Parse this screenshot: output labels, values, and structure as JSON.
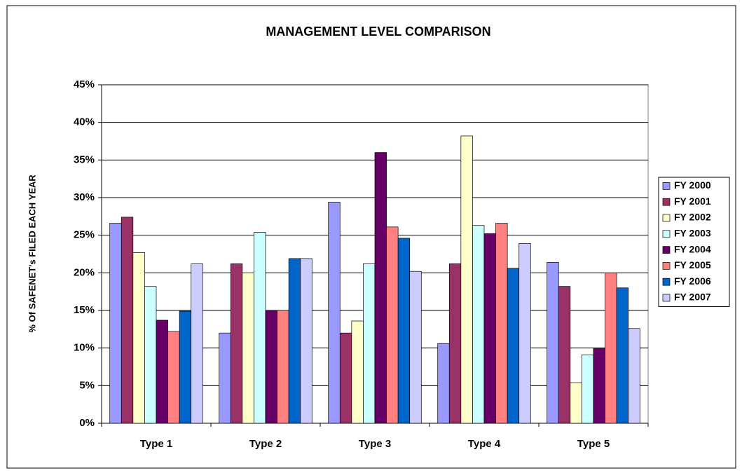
{
  "chart_data": {
    "type": "bar",
    "title": "MANAGEMENT LEVEL COMPARISON",
    "y_label": "% Of SAFENET's FILED EACH YEAR",
    "categories": [
      "Type 1",
      "Type 2",
      "Type 3",
      "Type 4",
      "Type 5"
    ],
    "series": [
      {
        "name": "FY 2000",
        "color": "#9999ff",
        "values": [
          26.6,
          12.0,
          29.4,
          10.6,
          21.4
        ]
      },
      {
        "name": "FY 2001",
        "color": "#993366",
        "values": [
          27.4,
          21.2,
          12.0,
          21.2,
          18.2
        ]
      },
      {
        "name": "FY 2002",
        "color": "#ffffcc",
        "values": [
          22.7,
          20.0,
          13.6,
          38.2,
          5.4
        ]
      },
      {
        "name": "FY 2003",
        "color": "#ccffff",
        "values": [
          18.2,
          25.4,
          21.2,
          26.3,
          9.1
        ]
      },
      {
        "name": "FY 2004",
        "color": "#660066",
        "values": [
          13.7,
          15.0,
          36.0,
          25.2,
          10.0
        ]
      },
      {
        "name": "FY 2005",
        "color": "#ff8080",
        "values": [
          12.2,
          15.0,
          26.1,
          26.6,
          20.0
        ]
      },
      {
        "name": "FY 2006",
        "color": "#0066cc",
        "values": [
          14.9,
          21.9,
          24.6,
          20.6,
          18.0
        ]
      },
      {
        "name": "FY 2007",
        "color": "#ccccff",
        "values": [
          21.2,
          21.9,
          20.2,
          23.9,
          12.6
        ]
      }
    ],
    "ylim": [
      0,
      45
    ],
    "yticks": [
      {
        "value": 0,
        "label": "0%"
      },
      {
        "value": 5,
        "label": "5%"
      },
      {
        "value": 10,
        "label": "10%"
      },
      {
        "value": 15,
        "label": "15%"
      },
      {
        "value": 20,
        "label": "20%"
      },
      {
        "value": 25,
        "label": "25%"
      },
      {
        "value": 30,
        "label": "30%"
      },
      {
        "value": 35,
        "label": "35%"
      },
      {
        "value": 40,
        "label": "40%"
      },
      {
        "value": 45,
        "label": "45%"
      }
    ],
    "grid": true,
    "legend": "right"
  }
}
